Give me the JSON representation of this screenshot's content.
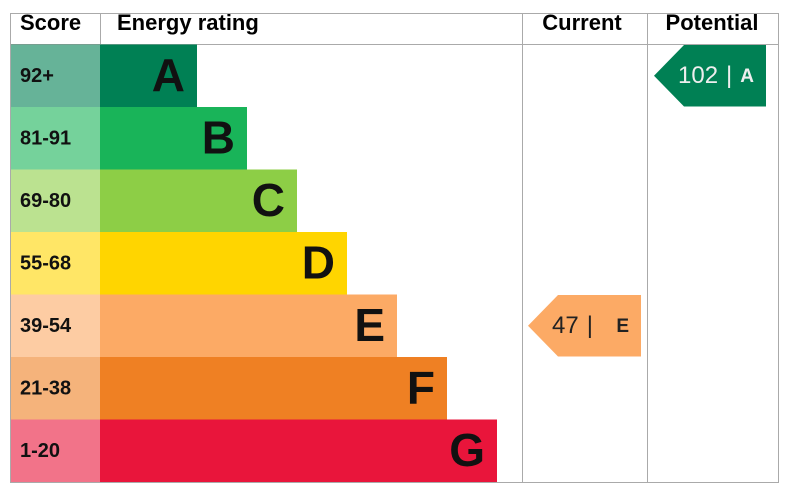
{
  "header": {
    "score": "Score",
    "rating": "Energy rating",
    "current": "Current",
    "potential": "Potential"
  },
  "bands": [
    {
      "score": "92+",
      "letter": "A",
      "color": "#008054"
    },
    {
      "score": "81-91",
      "letter": "B",
      "color": "#19b459"
    },
    {
      "score": "69-80",
      "letter": "C",
      "color": "#8dce46"
    },
    {
      "score": "55-68",
      "letter": "D",
      "color": "#ffd500"
    },
    {
      "score": "39-54",
      "letter": "E",
      "color": "#fcaa65"
    },
    {
      "score": "21-38",
      "letter": "F",
      "color": "#ef8023"
    },
    {
      "score": "1-20",
      "letter": "G",
      "color": "#e9153b"
    }
  ],
  "current": {
    "value": 47,
    "separator": "|",
    "letter": "E"
  },
  "potential": {
    "value": 102,
    "separator": "|",
    "letter": "A"
  }
}
